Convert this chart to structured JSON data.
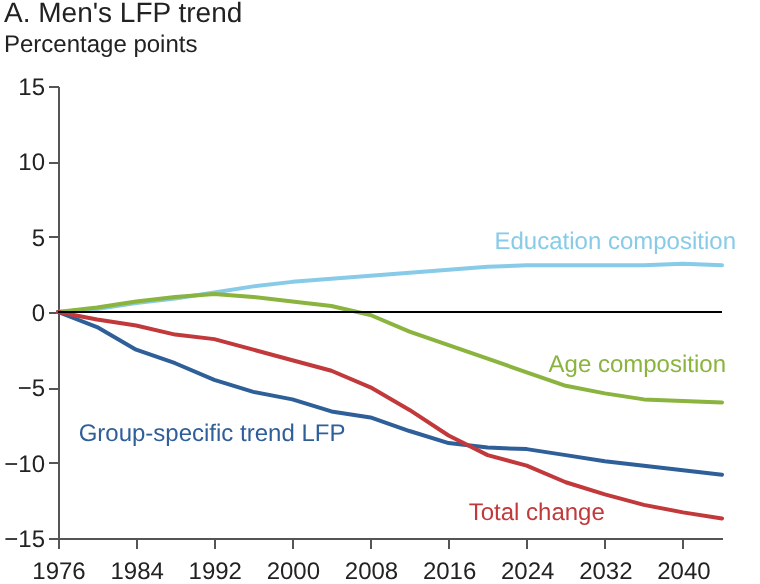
{
  "chart_data": {
    "type": "line",
    "title": "A. Men's LFP trend",
    "ylabel": "Percentage points",
    "x": [
      1976,
      1980,
      1984,
      1988,
      1992,
      1996,
      2000,
      2004,
      2008,
      2012,
      2016,
      2020,
      2024,
      2028,
      2032,
      2036,
      2040,
      2044
    ],
    "xlim": [
      1976,
      2044
    ],
    "xticks": [
      1976,
      1984,
      1992,
      2000,
      2008,
      2016,
      2024,
      2032,
      2040
    ],
    "ylim": [
      -15,
      15
    ],
    "yticks": [
      -15,
      -10,
      -5,
      0,
      5,
      10,
      15
    ],
    "ref_lines": [
      {
        "axis": "y",
        "value": 0,
        "color": "#000000"
      }
    ],
    "series": [
      {
        "name": "Education composition",
        "color": "#87cbe8",
        "values": [
          0,
          0.2,
          0.6,
          0.9,
          1.3,
          1.7,
          2.0,
          2.2,
          2.4,
          2.6,
          2.8,
          3.0,
          3.1,
          3.1,
          3.1,
          3.1,
          3.2,
          3.1
        ]
      },
      {
        "name": "Age composition",
        "color": "#8ab43e",
        "values": [
          0,
          0.3,
          0.7,
          1.0,
          1.2,
          1.0,
          0.7,
          0.4,
          -0.2,
          -1.3,
          -2.2,
          -3.1,
          -4.0,
          -4.9,
          -5.4,
          -5.8,
          -5.9,
          -6.0
        ]
      },
      {
        "name": "Group-specific trend LFP",
        "color": "#2f5f99",
        "values": [
          0,
          -1.0,
          -2.5,
          -3.4,
          -4.5,
          -5.3,
          -5.8,
          -6.6,
          -7.0,
          -7.9,
          -8.7,
          -9.0,
          -9.1,
          -9.5,
          -9.9,
          -10.2,
          -10.5,
          -10.8
        ]
      },
      {
        "name": "Total change",
        "color": "#c1393b",
        "values": [
          0,
          -0.5,
          -0.9,
          -1.5,
          -1.8,
          -2.5,
          -3.2,
          -3.9,
          -5.0,
          -6.5,
          -8.2,
          -9.5,
          -10.2,
          -11.3,
          -12.1,
          -12.8,
          -13.3,
          -13.7
        ]
      }
    ]
  }
}
